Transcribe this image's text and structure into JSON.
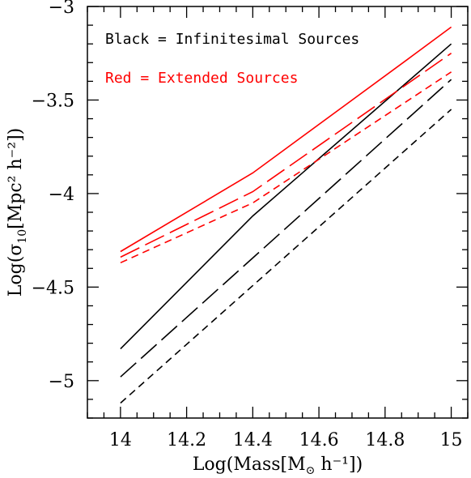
{
  "chart_data": {
    "type": "line",
    "title": "",
    "xlabel_parts": {
      "pre": "Log(Mass[M",
      "sym": "⊙",
      "post": " h⁻¹])"
    },
    "ylabel_parts": {
      "pre": "Log(σ",
      "sub": "10",
      "post": "[Mpc² h⁻²])"
    },
    "xlim": [
      13.9,
      15.05
    ],
    "ylim": [
      -5.2,
      -3.0
    ],
    "x_ticks": [
      14,
      14.2,
      14.4,
      14.6,
      14.8,
      15
    ],
    "x_tick_labels": [
      "14",
      "14.2",
      "14.4",
      "14.6",
      "14.8",
      "15"
    ],
    "y_ticks": [
      -5,
      -4.5,
      -4,
      -3.5,
      -3
    ],
    "y_tick_labels": [
      "-5",
      "-4.5",
      "-4",
      "-3.5",
      "-3"
    ],
    "grid": false,
    "annotations": [
      {
        "text": "Black = Infinitesimal Sources",
        "color": "#000000"
      },
      {
        "text": "Red = Extended Sources",
        "color": "#ff0000"
      }
    ],
    "series": [
      {
        "color": "#000000",
        "dash": "solid",
        "x": [
          14.0,
          14.4,
          15.0
        ],
        "y": [
          -4.83,
          -4.12,
          -3.2
        ]
      },
      {
        "color": "#000000",
        "dash": "long",
        "x": [
          14.0,
          15.0
        ],
        "y": [
          -4.98,
          -3.39
        ]
      },
      {
        "color": "#000000",
        "dash": "short",
        "x": [
          14.0,
          15.0
        ],
        "y": [
          -5.12,
          -3.55
        ]
      },
      {
        "color": "#ff0000",
        "dash": "solid",
        "x": [
          14.0,
          14.4,
          14.87,
          15.0
        ],
        "y": [
          -4.31,
          -3.89,
          -3.28,
          -3.11
        ]
      },
      {
        "color": "#ff0000",
        "dash": "long",
        "x": [
          14.0,
          14.4,
          15.0
        ],
        "y": [
          -4.34,
          -3.99,
          -3.25
        ]
      },
      {
        "color": "#ff0000",
        "dash": "short",
        "x": [
          14.0,
          14.4,
          15.0
        ],
        "y": [
          -4.37,
          -4.05,
          -3.35
        ]
      }
    ]
  }
}
